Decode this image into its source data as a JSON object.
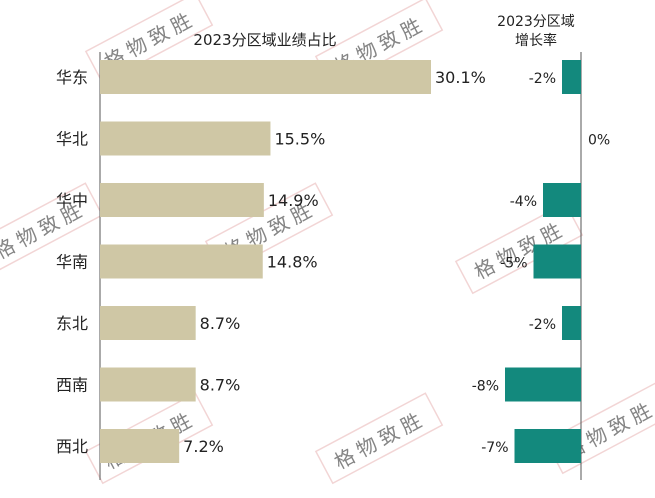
{
  "chart_data": [
    {
      "type": "bar",
      "title": "2023分区域业绩占比",
      "categories": [
        "华东",
        "华北",
        "华中",
        "华南",
        "东北",
        "西南",
        "西北"
      ],
      "values": [
        30.1,
        15.5,
        14.9,
        14.8,
        8.7,
        8.7,
        7.2
      ],
      "value_labels": [
        "30.1%",
        "15.5%",
        "14.9%",
        "14.8%",
        "8.7%",
        "8.7%",
        "7.2%"
      ],
      "unit": "%",
      "orientation": "horizontal",
      "bar_color": "#cfc7a5",
      "grid": false
    },
    {
      "type": "bar",
      "title_lines": [
        "2023分区域",
        "增长率"
      ],
      "categories": [
        "华东",
        "华北",
        "华中",
        "华南",
        "东北",
        "西南",
        "西北"
      ],
      "values": [
        -2,
        0,
        -4,
        -5,
        -2,
        -8,
        -7
      ],
      "value_labels": [
        "-2%",
        "0%",
        "-4%",
        "-5%",
        "-2%",
        "-8%",
        "-7%"
      ],
      "unit": "%",
      "orientation": "horizontal",
      "bar_color": "#13897d",
      "grid": false
    }
  ],
  "watermark": {
    "text": "格物致胜",
    "color": "#e8b4b4"
  }
}
